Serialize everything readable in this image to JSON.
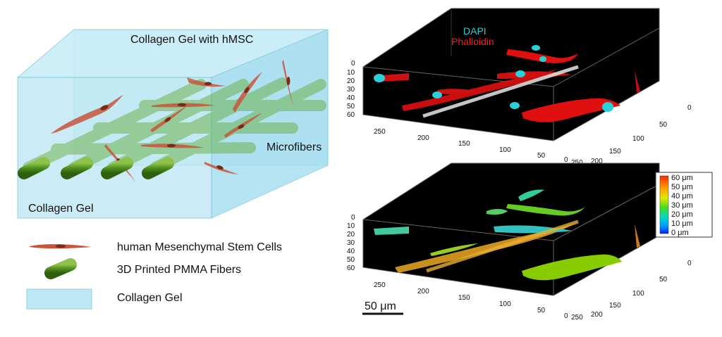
{
  "schematic": {
    "top_label": "Collagen Gel with hMSC",
    "side_label": "Collagen Gel",
    "fiber_label": "Microfibers"
  },
  "legend": {
    "items": [
      {
        "icon": "cell-icon",
        "label": "human Mesenchymal Stem Cells"
      },
      {
        "icon": "fiber-icon",
        "label": "3D Printed PMMA Fibers"
      },
      {
        "icon": "gel-block-icon",
        "label": "Collagen Gel"
      }
    ]
  },
  "top_panel": {
    "channels": [
      {
        "name": "DAPI",
        "color": "#2ad0d8"
      },
      {
        "name": "Phalloidin",
        "color": "#ff1a1a"
      }
    ],
    "z_ticks": [
      "0",
      "10",
      "20",
      "30",
      "40",
      "50",
      "60"
    ],
    "x_ticks": [
      "250",
      "200",
      "150",
      "100",
      "50",
      "0"
    ],
    "y_ticks": [
      "0",
      "50",
      "100",
      "150",
      "200",
      "250"
    ]
  },
  "bottom_panel": {
    "z_ticks": [
      "0",
      "10",
      "20",
      "30",
      "40",
      "50",
      "60"
    ],
    "x_ticks": [
      "250",
      "200",
      "150",
      "100",
      "50",
      "0"
    ],
    "y_ticks": [
      "0",
      "50",
      "100",
      "150",
      "200",
      "250"
    ],
    "colorbar": {
      "labels": [
        "60 μm",
        "50 μm",
        "40 μm",
        "30 μm",
        "20 μm",
        "10 μm",
        "0 μm"
      ],
      "colors": [
        "#ff2a00",
        "#ff8800",
        "#e6e600",
        "#66dd00",
        "#00ddaa",
        "#0099ff",
        "#0022ff"
      ]
    }
  },
  "scale_bar": {
    "label": "50 μm"
  }
}
